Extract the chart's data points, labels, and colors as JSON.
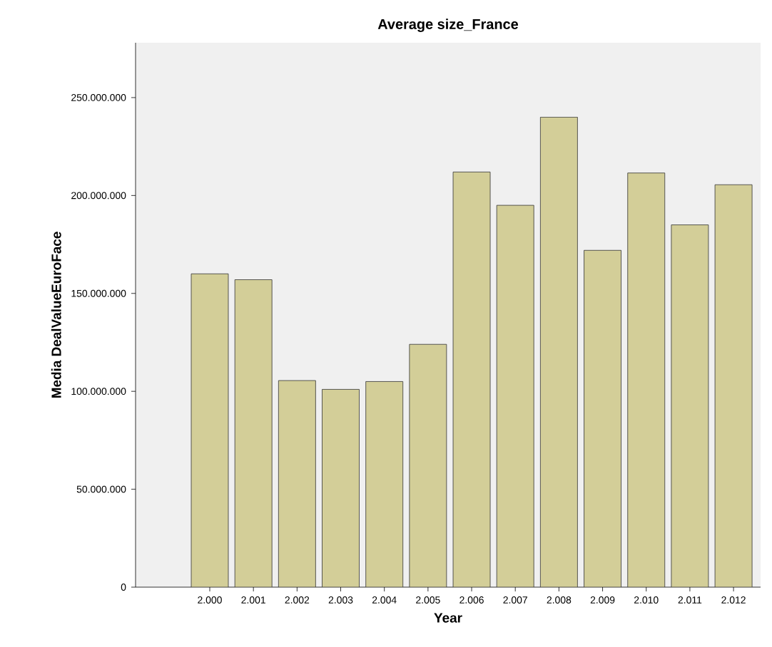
{
  "chart_data": {
    "type": "bar",
    "title": "Average size_France",
    "xlabel": "Year",
    "ylabel": "Media DealValueEuroFace",
    "categories": [
      "2.000",
      "2.001",
      "2.002",
      "2.003",
      "2.004",
      "2.005",
      "2.006",
      "2.007",
      "2.008",
      "2.009",
      "2.010",
      "2.011",
      "2.012"
    ],
    "values": [
      160000000,
      157000000,
      105500000,
      101000000,
      105000000,
      124000000,
      212000000,
      195000000,
      240000000,
      172000000,
      211500000,
      185000000,
      205500000
    ],
    "color": "#d3ce98",
    "ylim": [
      0,
      278000000
    ],
    "yticks": [
      {
        "value": 0,
        "label": "0"
      },
      {
        "value": 50000000,
        "label": "50.000.000"
      },
      {
        "value": 100000000,
        "label": "100.000.000"
      },
      {
        "value": 150000000,
        "label": "150.000.000"
      },
      {
        "value": 200000000,
        "label": "200.000.000"
      },
      {
        "value": 250000000,
        "label": "250.000.000"
      }
    ],
    "grid": false
  }
}
